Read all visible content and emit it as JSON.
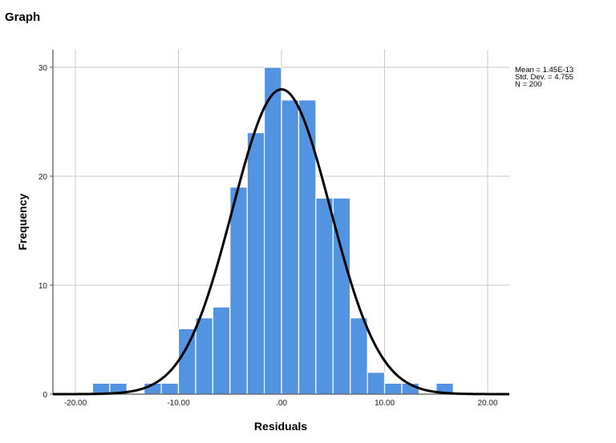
{
  "page": {
    "title": "Graph"
  },
  "chart_data": {
    "type": "bar",
    "subtype": "histogram",
    "title": "",
    "xlabel": "Residuals",
    "ylabel": "Frequency",
    "xlim": [
      -22.2,
      22.1
    ],
    "ylim": [
      0,
      31.5
    ],
    "x_ticks": [
      -20,
      -10,
      0,
      10,
      20
    ],
    "x_tick_labels": [
      "-20.00",
      "-10.00",
      ".00",
      "10.00",
      "20.00"
    ],
    "y_ticks": [
      0,
      10,
      20,
      30
    ],
    "y_tick_labels": [
      "0",
      "10",
      "20",
      "30"
    ],
    "grid": true,
    "bin_width": 1.667,
    "bin_starts": [
      -18.33,
      -16.67,
      -15.0,
      -13.33,
      -11.67,
      -10.0,
      -8.33,
      -6.67,
      -5.0,
      -3.33,
      -1.67,
      0.0,
      1.67,
      3.33,
      5.0,
      6.67,
      8.33,
      10.0,
      11.67,
      13.33,
      15.0
    ],
    "values": [
      1,
      1,
      0,
      1,
      1,
      6,
      7,
      8,
      19,
      24,
      30,
      27,
      27,
      18,
      18,
      7,
      2,
      1,
      1,
      0,
      1
    ],
    "normal_curve": {
      "mean": 0,
      "std": 4.755,
      "n": 200
    },
    "stats": {
      "mean": "Mean = 1.45E-13",
      "std": "Std. Dev. = 4.755",
      "n": "N = 200"
    },
    "colors": {
      "bar": "#5294e2",
      "bar_edge": "#ffffff",
      "curve": "#000000",
      "grid": "#c8c8c8"
    }
  }
}
